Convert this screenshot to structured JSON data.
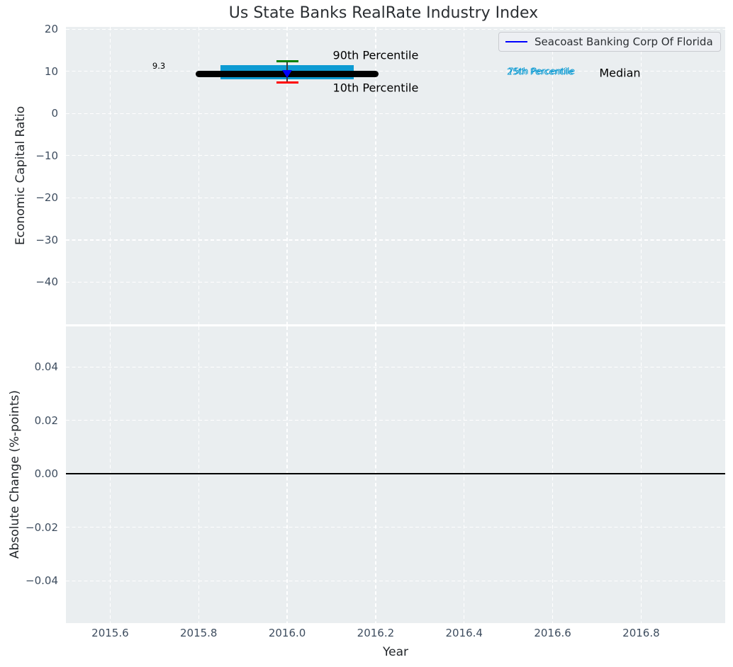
{
  "title": "Us State Banks RealRate Industry Index",
  "xlabel": "Year",
  "legend": {
    "label": "Seacoast Banking Corp Of Florida",
    "line_color": "#0000ff"
  },
  "colors": {
    "panel_bg": "#eaeef0",
    "grid": "#ffffff",
    "box_fill": "#0d9bd3",
    "median_line": "#000000",
    "whisker_line": "#3a3a3a",
    "p90_tick": "#008000",
    "p10_tick": "#ff0000",
    "company_marker": "#0000ff",
    "tick_label": "#3e4d5f",
    "text_dark": "#22262a",
    "zero_line": "#000000"
  },
  "chart_data": [
    {
      "type": "box",
      "panel": "top",
      "ylabel": "Economic Capital Ratio",
      "xlim": [
        2015.5,
        2016.99
      ],
      "ylim": [
        -50.0,
        20.55
      ],
      "grid": true,
      "legend_position": "upper right",
      "xtick_values": [
        2015.6,
        2015.8,
        2016.0,
        2016.2,
        2016.4,
        2016.6,
        2016.8
      ],
      "ytick_values": [
        20,
        10,
        0,
        -10,
        -20,
        -30,
        -40
      ],
      "ytick_labels": [
        "20",
        "10",
        "0",
        "−10",
        "−20",
        "−30",
        "−40"
      ],
      "box": {
        "x_center": 2016.0,
        "box_x_start": 2015.85,
        "box_x_end": 2016.15,
        "median_x_start": 2015.8,
        "median_x_end": 2016.2,
        "median": 9.3,
        "p25": 8.2,
        "p75": 11.5,
        "p10": 7.3,
        "p90": 12.4
      },
      "company_point": {
        "name": "Seacoast Banking Corp Of Florida",
        "x": 2016.0,
        "y": 9.4,
        "marker": "triangle-down",
        "color": "#0000ff"
      },
      "annotations": [
        {
          "text": "9.3",
          "x": 2015.71,
          "y": 11.35,
          "color": "#000000",
          "size": "sm",
          "name": "median-value-label"
        },
        {
          "text": "90th Percentile",
          "x": 2016.2,
          "y": 13.8,
          "color": "#000000",
          "size": "lg",
          "name": "p90-label"
        },
        {
          "text": "10th Percentile",
          "x": 2016.2,
          "y": 6.05,
          "color": "#000000",
          "size": "lg",
          "name": "p10-label"
        },
        {
          "text": "75th Percentile",
          "x": 2016.575,
          "y": 10.15,
          "color": "#0d9bd3",
          "size": "md",
          "name": "p75-label"
        },
        {
          "text": "25th Percentile",
          "x": 2016.572,
          "y": 9.9,
          "color": "#0d9bd3",
          "size": "md",
          "name": "p25-label"
        },
        {
          "text": "Median",
          "x": 2016.752,
          "y": 9.62,
          "color": "#000000",
          "size": "lg",
          "name": "median-label"
        }
      ]
    },
    {
      "type": "line",
      "panel": "bottom",
      "ylabel": "Absolute Change (%-points)",
      "xlim": [
        2015.5,
        2016.99
      ],
      "ylim": [
        -0.0558,
        0.0552
      ],
      "grid": true,
      "xtick_values": [
        2015.6,
        2015.8,
        2016.0,
        2016.2,
        2016.4,
        2016.6,
        2016.8
      ],
      "xtick_labels": [
        "2015.6",
        "2015.8",
        "2016.0",
        "2016.2",
        "2016.4",
        "2016.6",
        "2016.8"
      ],
      "ytick_values": [
        0.04,
        0.02,
        0.0,
        -0.02,
        -0.04
      ],
      "ytick_labels": [
        "0.04",
        "0.02",
        "0.00",
        "−0.02",
        "−0.04"
      ],
      "zero_line_y": 0.0,
      "series": []
    }
  ]
}
